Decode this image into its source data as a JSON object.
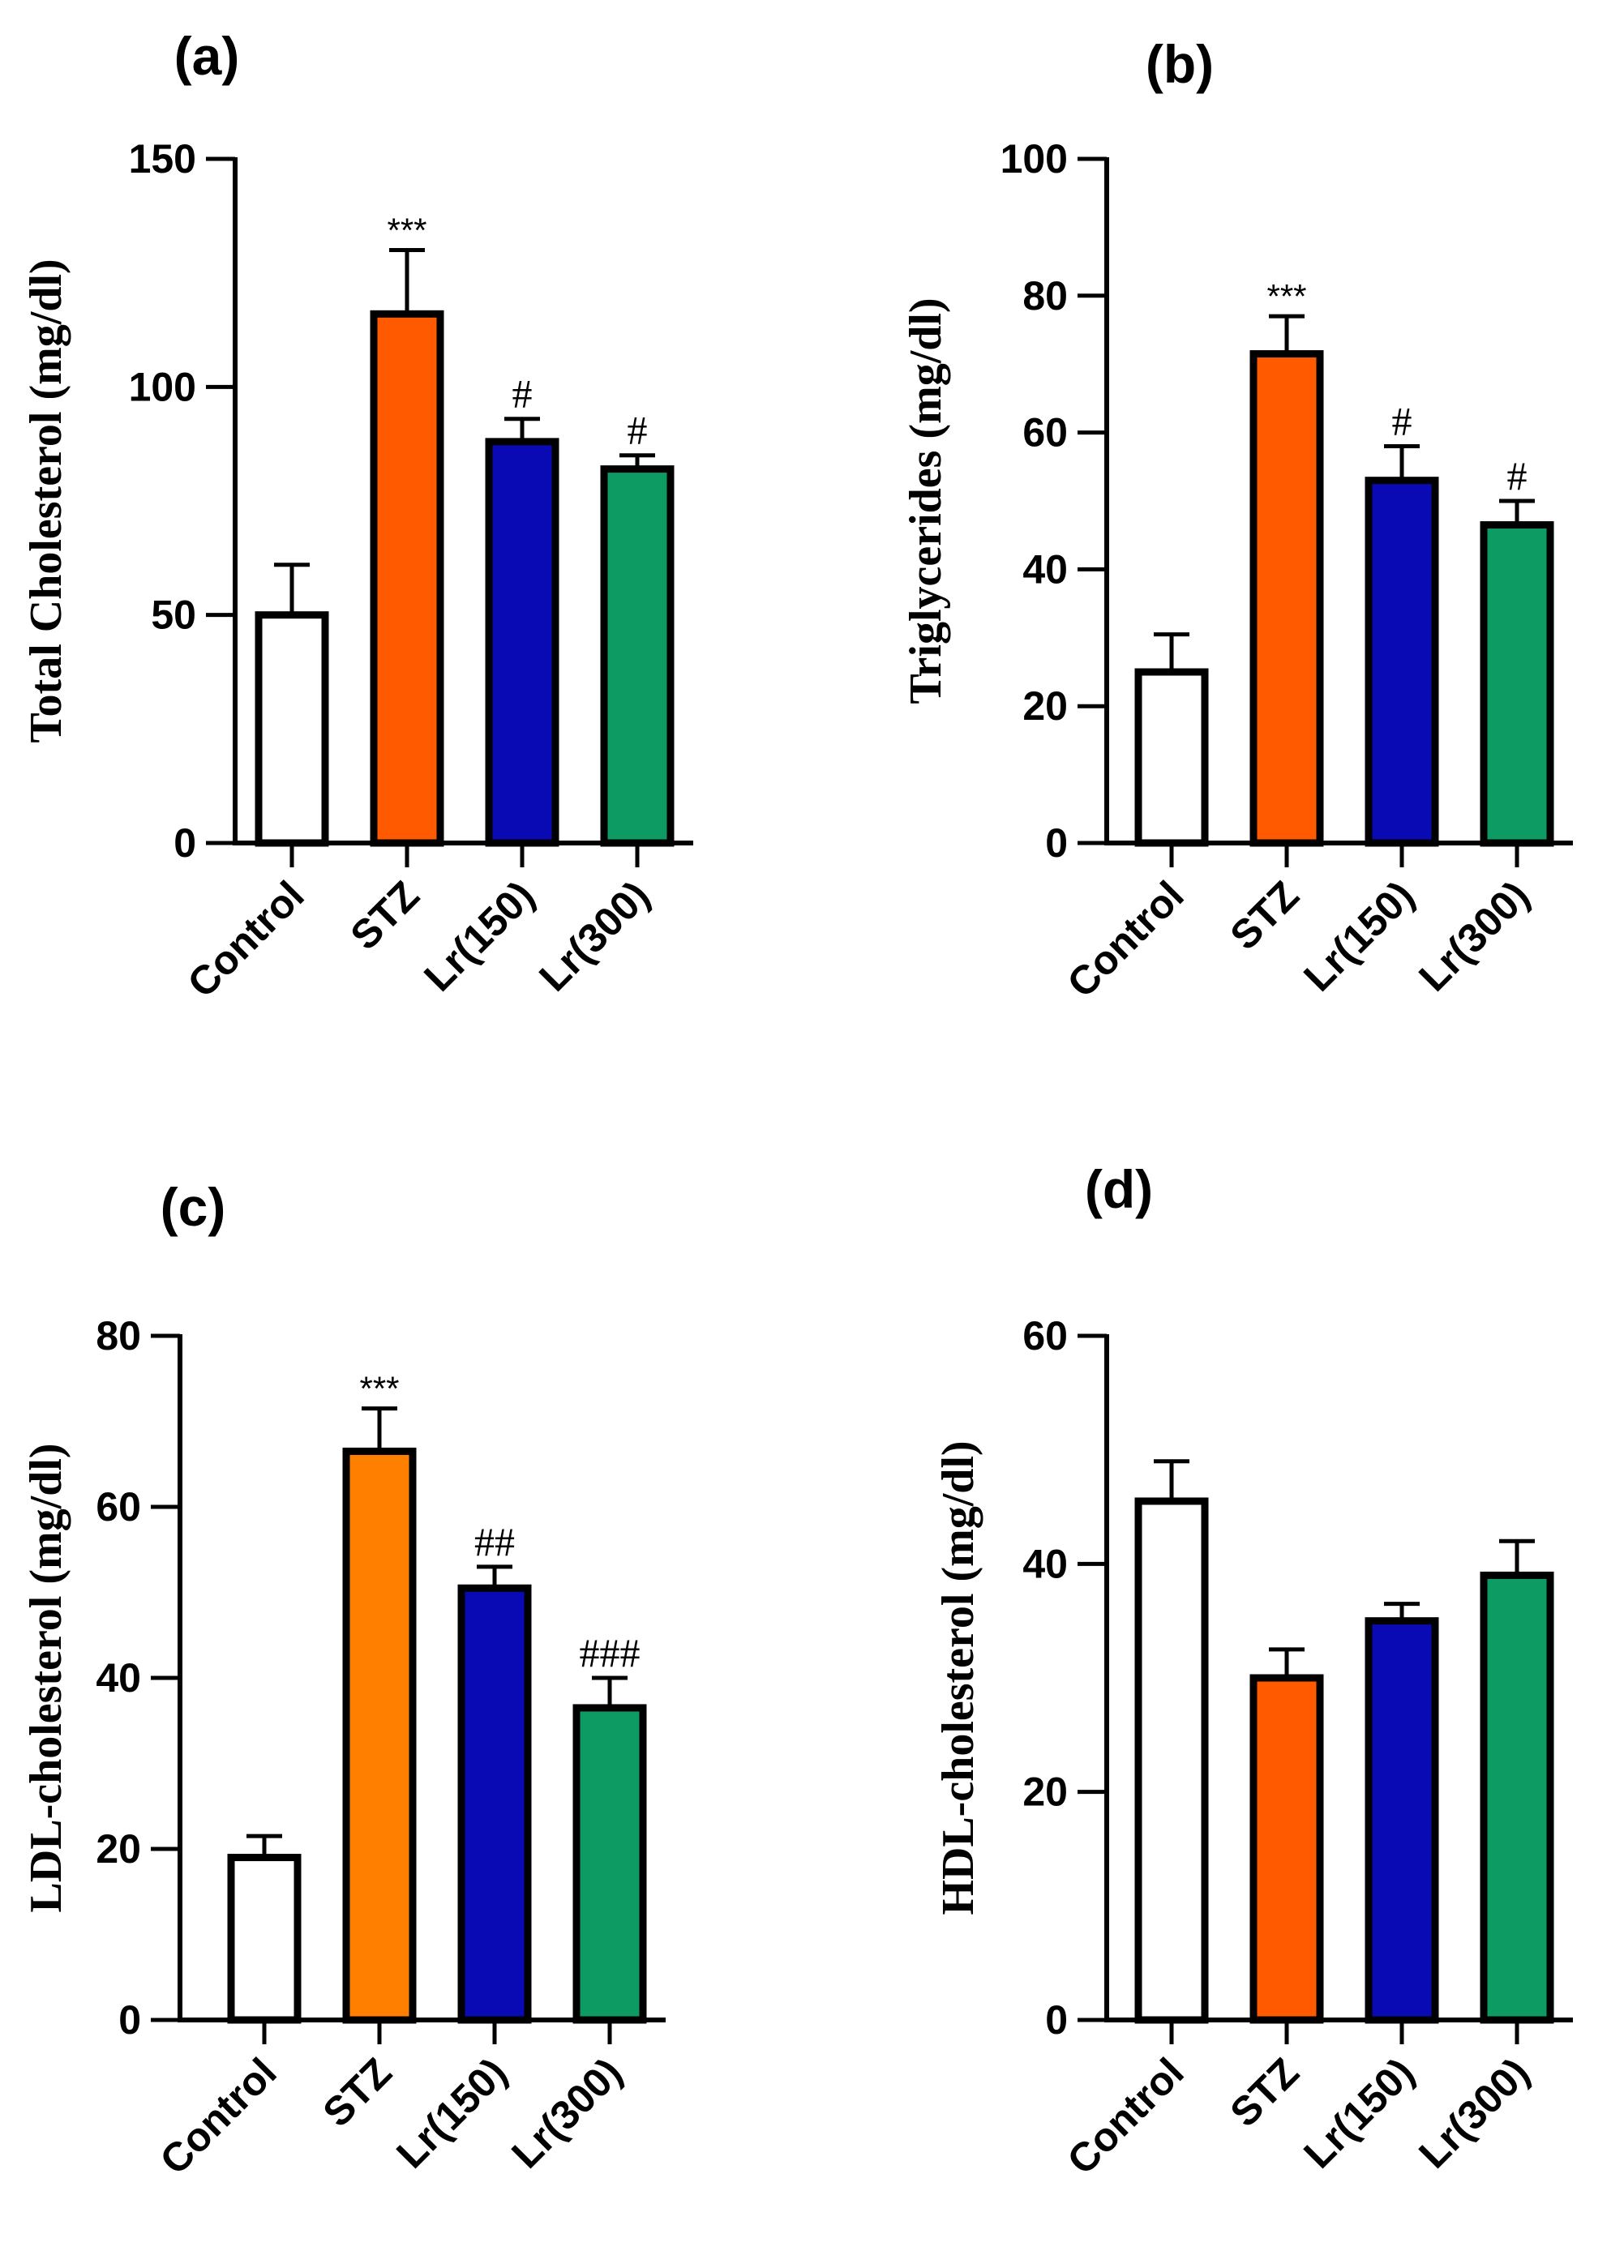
{
  "chart_data": [
    {
      "type": "bar",
      "label": "(a)",
      "ylabel": "Total Cholesterol (mg/dl)",
      "ylim": [
        0,
        150
      ],
      "yticks": [
        0,
        50,
        100,
        150
      ],
      "categories": [
        "Control",
        "STZ",
        "Lr(150)",
        "Lr(300)"
      ],
      "values": [
        50,
        116,
        88,
        82
      ],
      "errors": [
        11,
        14,
        5,
        3
      ],
      "colors": [
        "#ffffff",
        "#ff5a00",
        "#0a0ab4",
        "#0d9b63"
      ],
      "annotations": [
        "",
        "***",
        "#",
        "#"
      ]
    },
    {
      "type": "bar",
      "label": "(b)",
      "ylabel": "Triglycerides (mg/dl)",
      "ylim": [
        0,
        100
      ],
      "yticks": [
        0,
        20,
        40,
        60,
        80,
        100
      ],
      "categories": [
        "Control",
        "STZ",
        "Lr(150)",
        "Lr(300)"
      ],
      "values": [
        25,
        71.5,
        53,
        46.5
      ],
      "errors": [
        5.5,
        5.5,
        5,
        3.5
      ],
      "colors": [
        "#ffffff",
        "#ff5a00",
        "#0a0ab4",
        "#0d9b63"
      ],
      "annotations": [
        "",
        "***",
        "#",
        "#"
      ]
    },
    {
      "type": "bar",
      "label": "(c)",
      "ylabel": "LDL-cholesterol (mg/dl)",
      "ylim": [
        0,
        80
      ],
      "yticks": [
        0,
        20,
        40,
        60,
        80
      ],
      "categories": [
        "Control",
        "STZ",
        "Lr(150)",
        "Lr(300)"
      ],
      "values": [
        19,
        66.5,
        50.5,
        36.5
      ],
      "errors": [
        2.5,
        5,
        2.5,
        3.5
      ],
      "colors": [
        "#ffffff",
        "#ff8000",
        "#0a0ab4",
        "#0d9b63"
      ],
      "annotations": [
        "",
        "***",
        "##",
        "###"
      ]
    },
    {
      "type": "bar",
      "label": "(d)",
      "ylabel": "HDL-cholesterol (mg/dl)",
      "ylim": [
        0,
        60
      ],
      "yticks": [
        0,
        20,
        40,
        60
      ],
      "categories": [
        "Control",
        "STZ",
        "Lr(150)",
        "Lr(300)"
      ],
      "values": [
        45.5,
        30,
        35,
        39
      ],
      "errors": [
        3.5,
        2.5,
        1.5,
        3
      ],
      "colors": [
        "#ffffff",
        "#ff5a00",
        "#0a0ab4",
        "#0d9b63"
      ],
      "annotations": [
        "",
        "",
        "",
        ""
      ]
    }
  ]
}
